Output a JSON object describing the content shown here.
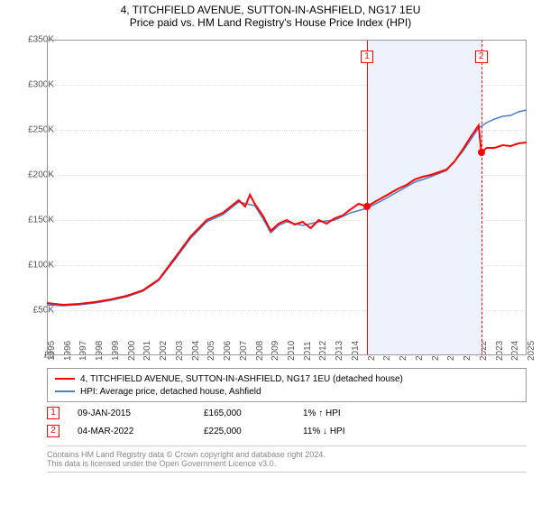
{
  "title": "4, TITCHFIELD AVENUE, SUTTON-IN-ASHFIELD, NG17 1EU",
  "subtitle": "Price paid vs. HM Land Registry's House Price Index (HPI)",
  "chart": {
    "type": "line",
    "background_color": "#ffffff",
    "grid_color": "#dddddd",
    "ylim": [
      0,
      350000
    ],
    "ytick_step": 50000,
    "yticks": [
      "£0",
      "£50K",
      "£100K",
      "£150K",
      "£200K",
      "£250K",
      "£300K",
      "£350K"
    ],
    "xlim": [
      1995,
      2025
    ],
    "xticks": [
      1995,
      1996,
      1997,
      1998,
      1999,
      2000,
      2001,
      2002,
      2003,
      2004,
      2005,
      2006,
      2007,
      2008,
      2009,
      2010,
      2011,
      2012,
      2013,
      2014,
      2015,
      2016,
      2017,
      2018,
      2019,
      2020,
      2021,
      2022,
      2023,
      2024,
      2025
    ],
    "highlight_range": [
      2015.02,
      2022.17
    ],
    "highlight_color": "#eef3fb",
    "series": [
      {
        "name": "property",
        "color": "#ff0000",
        "width": 2,
        "label": "4, TITCHFIELD AVENUE, SUTTON-IN-ASHFIELD, NG17 1EU (detached house)",
        "points": [
          [
            1995,
            58
          ],
          [
            1996,
            56
          ],
          [
            1997,
            57
          ],
          [
            1998,
            59
          ],
          [
            1999,
            62
          ],
          [
            2000,
            66
          ],
          [
            2001,
            72
          ],
          [
            2002,
            84
          ],
          [
            2003,
            108
          ],
          [
            2004,
            132
          ],
          [
            2005,
            150
          ],
          [
            2006,
            158
          ],
          [
            2007,
            172
          ],
          [
            2007.4,
            165
          ],
          [
            2007.7,
            178
          ],
          [
            2008,
            168
          ],
          [
            2008.5,
            155
          ],
          [
            2009,
            138
          ],
          [
            2009.5,
            146
          ],
          [
            2010,
            150
          ],
          [
            2010.5,
            145
          ],
          [
            2011,
            148
          ],
          [
            2011.5,
            141
          ],
          [
            2012,
            150
          ],
          [
            2012.5,
            146
          ],
          [
            2013,
            152
          ],
          [
            2013.5,
            155
          ],
          [
            2014,
            162
          ],
          [
            2014.5,
            168
          ],
          [
            2015.02,
            165
          ],
          [
            2015.5,
            170
          ],
          [
            2016,
            175
          ],
          [
            2016.5,
            180
          ],
          [
            2017,
            185
          ],
          [
            2017.5,
            189
          ],
          [
            2018,
            195
          ],
          [
            2018.5,
            198
          ],
          [
            2019,
            200
          ],
          [
            2019.5,
            203
          ],
          [
            2020,
            206
          ],
          [
            2020.5,
            215
          ],
          [
            2021,
            228
          ],
          [
            2021.5,
            242
          ],
          [
            2022,
            255
          ],
          [
            2022.17,
            225
          ],
          [
            2022.5,
            230
          ],
          [
            2023,
            230
          ],
          [
            2023.5,
            233
          ],
          [
            2024,
            232
          ],
          [
            2024.5,
            235
          ],
          [
            2025,
            236
          ]
        ]
      },
      {
        "name": "hpi",
        "color": "#4a7ec8",
        "width": 1.5,
        "label": "HPI: Average price, detached house, Ashfield",
        "points": [
          [
            1995,
            56
          ],
          [
            1996,
            55
          ],
          [
            1997,
            56
          ],
          [
            1998,
            58
          ],
          [
            1999,
            61
          ],
          [
            2000,
            65
          ],
          [
            2001,
            71
          ],
          [
            2002,
            83
          ],
          [
            2003,
            106
          ],
          [
            2004,
            130
          ],
          [
            2005,
            148
          ],
          [
            2006,
            156
          ],
          [
            2007,
            170
          ],
          [
            2008,
            166
          ],
          [
            2008.5,
            152
          ],
          [
            2009,
            136
          ],
          [
            2009.5,
            144
          ],
          [
            2010,
            148
          ],
          [
            2011,
            144
          ],
          [
            2012,
            148
          ],
          [
            2013,
            150
          ],
          [
            2014,
            158
          ],
          [
            2015,
            163
          ],
          [
            2016,
            172
          ],
          [
            2017,
            182
          ],
          [
            2018,
            192
          ],
          [
            2019,
            198
          ],
          [
            2020,
            205
          ],
          [
            2021,
            226
          ],
          [
            2022,
            252
          ],
          [
            2022.5,
            258
          ],
          [
            2023,
            262
          ],
          [
            2023.5,
            265
          ],
          [
            2024,
            266
          ],
          [
            2024.5,
            270
          ],
          [
            2025,
            272
          ]
        ]
      }
    ],
    "sale_markers": [
      {
        "n": "1",
        "x": 2015.02,
        "y": 165000
      },
      {
        "n": "2",
        "x": 2022.17,
        "y": 225000
      }
    ]
  },
  "legend": {
    "items": [
      {
        "color": "#ff0000",
        "label": "4, TITCHFIELD AVENUE, SUTTON-IN-ASHFIELD, NG17 1EU (detached house)"
      },
      {
        "color": "#4a7ec8",
        "label": "HPI: Average price, detached house, Ashfield"
      }
    ]
  },
  "sales": [
    {
      "n": "1",
      "date": "09-JAN-2015",
      "price": "£165,000",
      "diff": "1% ↑ HPI"
    },
    {
      "n": "2",
      "date": "04-MAR-2022",
      "price": "£225,000",
      "diff": "11% ↓ HPI"
    }
  ],
  "footer": {
    "line1": "Contains HM Land Registry data © Crown copyright and database right 2024.",
    "line2": "This data is licensed under the Open Government Licence v3.0."
  }
}
